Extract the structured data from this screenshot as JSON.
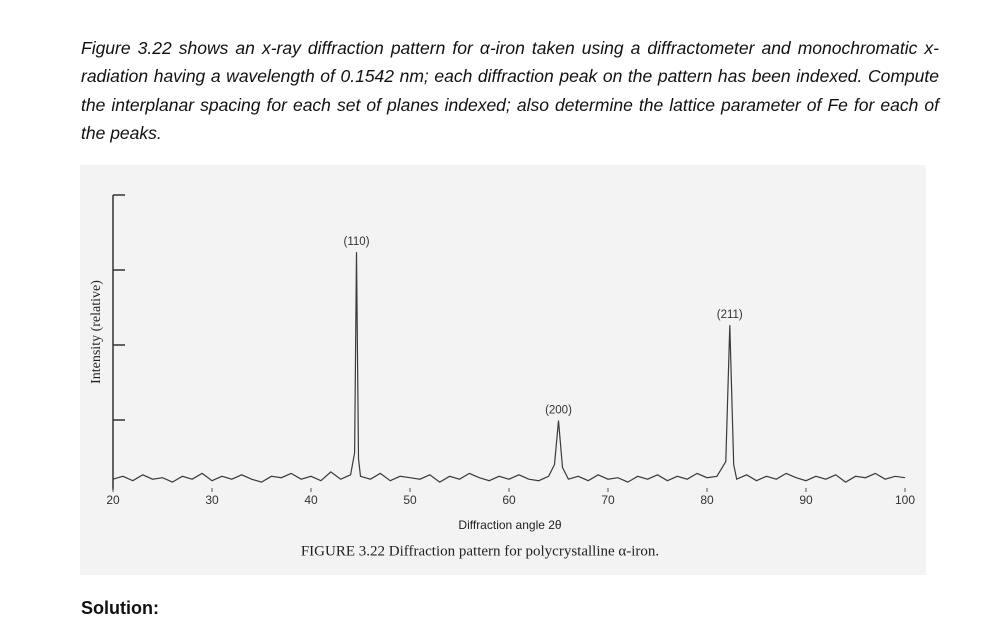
{
  "problem": "Figure 3.22 shows an x-ray diffraction pattern for α-iron taken using a diffractometer and monochromatic x-radiation having a wavelength of 0.1542 nm; each diffraction peak on the pattern has been indexed. Compute the interplanar spacing for each set of planes indexed; also determine the lattice parameter of Fe for each of the peaks.",
  "chart_data": {
    "type": "line",
    "y_label": "Intensity (relative)",
    "x_label": "Diffraction angle 2θ",
    "caption": "FIGURE 3.22  Diffraction pattern for polycrystalline α-iron.",
    "xlim": [
      20,
      100
    ],
    "xticks": [
      20,
      30,
      40,
      50,
      60,
      70,
      80,
      90,
      100
    ],
    "ylim": [
      0,
      100
    ],
    "x": [
      20,
      21,
      22,
      23,
      24,
      25,
      26,
      27,
      28,
      29,
      30,
      31,
      32,
      33,
      34,
      35,
      36,
      37,
      38,
      39,
      40,
      41,
      42,
      43,
      44,
      44.4,
      44.6,
      44.8,
      45,
      46,
      47,
      48,
      49,
      50,
      51,
      52,
      53,
      54,
      55,
      56,
      57,
      58,
      59,
      60,
      61,
      62,
      63,
      64,
      64.6,
      65,
      65.4,
      66,
      67,
      68,
      69,
      70,
      71,
      72,
      73,
      74,
      75,
      76,
      77,
      78,
      79,
      80,
      81,
      81.9,
      82.3,
      82.7,
      83,
      84,
      85,
      86,
      87,
      88,
      89,
      90,
      91,
      92,
      93,
      94,
      95,
      96,
      97,
      98,
      99,
      100
    ],
    "series": [
      {
        "color": "#3a3a3a",
        "values": [
          3,
          4,
          2.5,
          4.5,
          3,
          3.5,
          2,
          4,
          3,
          5,
          2.5,
          4,
          3,
          4.5,
          3,
          2,
          4,
          3.5,
          5,
          3,
          4,
          2.5,
          5.5,
          3,
          4.5,
          12,
          80.5,
          10,
          4,
          3,
          5,
          2.5,
          4,
          3.5,
          3,
          4.5,
          2,
          4,
          3,
          5,
          3.5,
          2.5,
          4,
          3,
          4.5,
          3,
          2.5,
          4,
          8,
          23,
          7,
          3,
          4,
          2.5,
          4.5,
          3,
          3.5,
          2,
          4,
          3,
          4.5,
          2.5,
          4,
          3,
          5,
          3.5,
          4,
          9,
          55.6,
          8,
          3,
          4.5,
          2.5,
          4,
          3,
          5,
          3.5,
          2.5,
          4,
          3,
          4.5,
          2,
          4,
          3.5,
          5,
          3,
          4,
          3.5
        ]
      }
    ],
    "annotations": [
      {
        "text": "(110)",
        "x": 44.6,
        "y": 80.5
      },
      {
        "text": "(200)",
        "x": 65,
        "y": 23
      },
      {
        "text": "(211)",
        "x": 82.3,
        "y": 55.6
      }
    ]
  },
  "solution_label": "Solution:"
}
